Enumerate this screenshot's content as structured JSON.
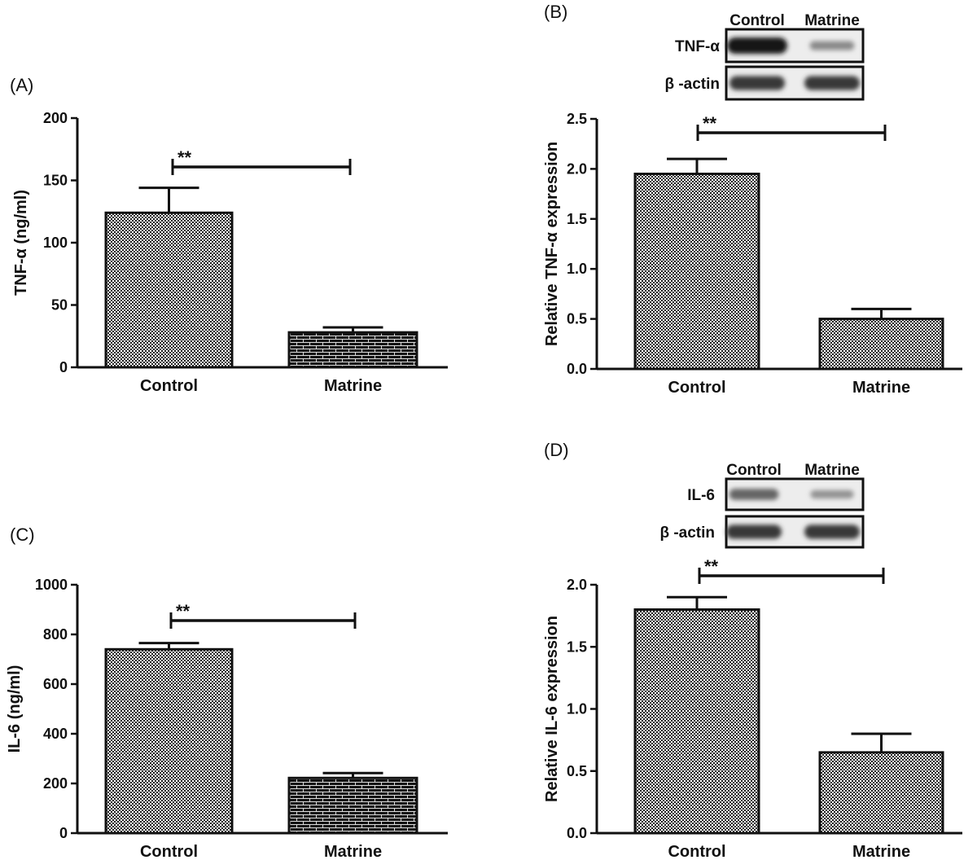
{
  "chart_data": [
    {
      "id": "A",
      "panel_label": "(A)",
      "type": "bar",
      "categories": [
        "Control",
        "Matrine"
      ],
      "values": [
        124,
        28
      ],
      "errors": [
        20,
        4
      ],
      "patterns": [
        "checker",
        "brick"
      ],
      "ylabel": "TNF-α  (ng/ml)",
      "ylim": [
        0,
        200
      ],
      "yticks": [
        "0",
        "50",
        "100",
        "150",
        "200"
      ],
      "significance": "**"
    },
    {
      "id": "B",
      "panel_label": "(B)",
      "type": "bar",
      "categories": [
        "Control",
        "Matrine"
      ],
      "values": [
        1.95,
        0.5
      ],
      "errors": [
        0.15,
        0.1
      ],
      "patterns": [
        "checker",
        "checker"
      ],
      "ylabel": "Relative TNF-α  expression",
      "ylim": [
        0,
        2.5
      ],
      "yticks": [
        "0.0",
        "0.5",
        "1.0",
        "1.5",
        "2.0",
        "2.5"
      ],
      "significance": "**",
      "blot": {
        "lanes": [
          "Control",
          "Matrine"
        ],
        "rows": [
          {
            "label": "TNF-α",
            "intensity": [
              1.0,
              0.35
            ]
          },
          {
            "label": "β -actin",
            "intensity": [
              0.8,
              0.8
            ]
          }
        ]
      }
    },
    {
      "id": "C",
      "panel_label": "(C)",
      "type": "bar",
      "categories": [
        "Control",
        "Matrine"
      ],
      "values": [
        740,
        222
      ],
      "errors": [
        25,
        20
      ],
      "patterns": [
        "checker",
        "brick"
      ],
      "ylabel": "IL-6 (ng/ml)",
      "ylim": [
        0,
        1000
      ],
      "yticks": [
        "0",
        "200",
        "400",
        "600",
        "800",
        "1000"
      ],
      "significance": "**"
    },
    {
      "id": "D",
      "panel_label": "(D)",
      "type": "bar",
      "categories": [
        "Control",
        "Matrine"
      ],
      "values": [
        1.8,
        0.65
      ],
      "errors": [
        0.1,
        0.15
      ],
      "patterns": [
        "checker",
        "checker"
      ],
      "ylabel": "Relative IL-6 expression",
      "ylim": [
        0,
        2.0
      ],
      "yticks": [
        "0.0",
        "0.5",
        "1.0",
        "1.5",
        "2.0"
      ],
      "significance": "**",
      "blot": {
        "lanes": [
          "Control",
          "Matrine"
        ],
        "rows": [
          {
            "label": "IL-6",
            "intensity": [
              0.55,
              0.3
            ]
          },
          {
            "label": "β -actin",
            "intensity": [
              0.8,
              0.8
            ]
          }
        ]
      }
    }
  ]
}
